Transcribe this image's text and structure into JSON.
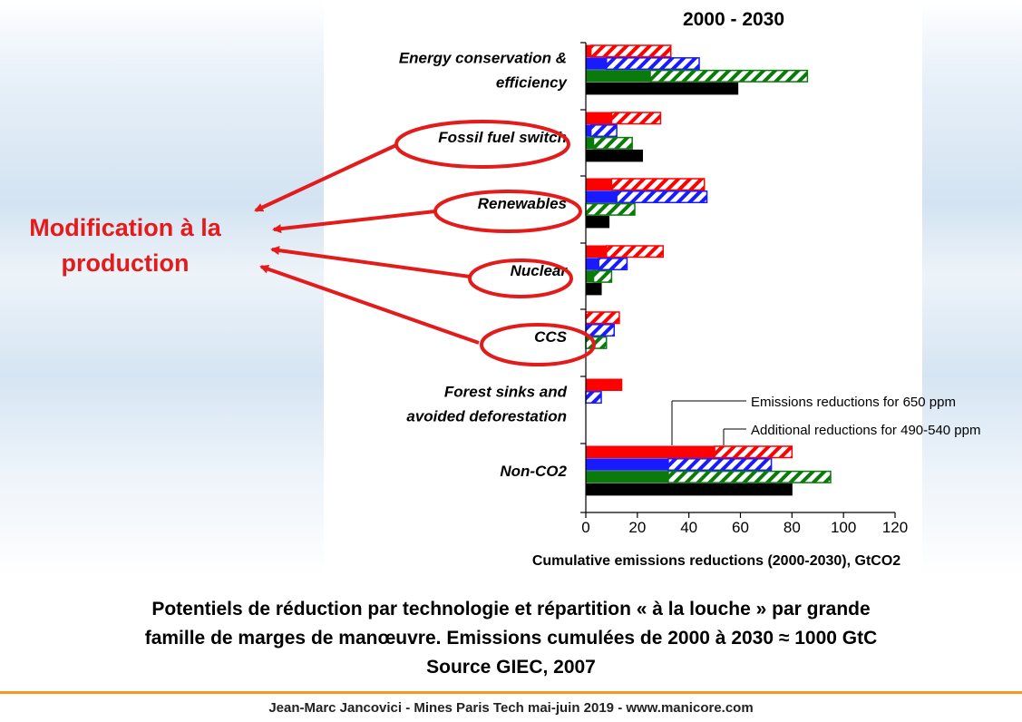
{
  "chart_data": {
    "type": "bar",
    "orientation": "horizontal",
    "title": "2000 - 2030",
    "xlabel": "Cumulative emissions reductions (2000-2030), GtCO2",
    "xlim": [
      0,
      120
    ],
    "xticks": [
      0,
      20,
      40,
      60,
      80,
      100,
      120
    ],
    "grid": false,
    "categories": [
      "Energy conservation & efficiency",
      "Fossil fuel switch",
      "Renewables",
      "Nuclear",
      "CCS",
      "Forest sinks and avoided deforestation",
      "Non-CO2"
    ],
    "category_label_lines": [
      [
        "Energy conservation &",
        "efficiency"
      ],
      [
        "Fossil fuel switch"
      ],
      [
        "Renewables"
      ],
      [
        "Nuclear"
      ],
      [
        "CCS"
      ],
      [
        "Forest sinks and",
        "avoided deforestation"
      ],
      [
        "Non-CO2"
      ]
    ],
    "bar_colors": [
      "#ff0000",
      "#1a1aff",
      "#0a7a0a",
      "#000000"
    ],
    "series": [
      {
        "name": "Emissions reductions for 650 ppm",
        "pattern": "solid",
        "values": [
          [
            2,
            8,
            25,
            59
          ],
          [
            10,
            2,
            3,
            22
          ],
          [
            10,
            12,
            0,
            9
          ],
          [
            8,
            5,
            3,
            6
          ],
          [
            0,
            0,
            0,
            0
          ],
          [
            14,
            0,
            0,
            0
          ],
          [
            50,
            32,
            32,
            80
          ]
        ]
      },
      {
        "name": "Additional reductions for 490-540 ppm",
        "pattern": "hatched",
        "values": [
          [
            31,
            36,
            61,
            0
          ],
          [
            19,
            10,
            15,
            0
          ],
          [
            36,
            35,
            19,
            0
          ],
          [
            22,
            11,
            7,
            0
          ],
          [
            13,
            11,
            8,
            0
          ],
          [
            0,
            6,
            0,
            0
          ],
          [
            30,
            40,
            63,
            0
          ]
        ]
      }
    ],
    "legend": {
      "placement": "right, inside",
      "entries": [
        "Emissions reductions for 650 ppm",
        "Additional reductions for 490-540 ppm"
      ]
    }
  },
  "annotations": {
    "callout": [
      "Modification à la",
      "production"
    ],
    "color": "#e31b1b",
    "circled_categories": [
      "Fossil fuel switch",
      "Renewables",
      "Nuclear",
      "CCS"
    ]
  },
  "caption": {
    "line1": "Potentiels de réduction par technologie et répartition « à la louche » par grande",
    "line2": "famille de marges de manœuvre. Emissions cumulées de 2000 à 2030 ≈ 1000 GtC",
    "line3": "Source GIEC, 2007"
  },
  "footer": "Jean-Marc Jancovici - Mines Paris Tech mai-juin 2019 - www.manicore.com",
  "colors": {
    "accent": "#f39a1e",
    "callout": "#e31b1b"
  }
}
